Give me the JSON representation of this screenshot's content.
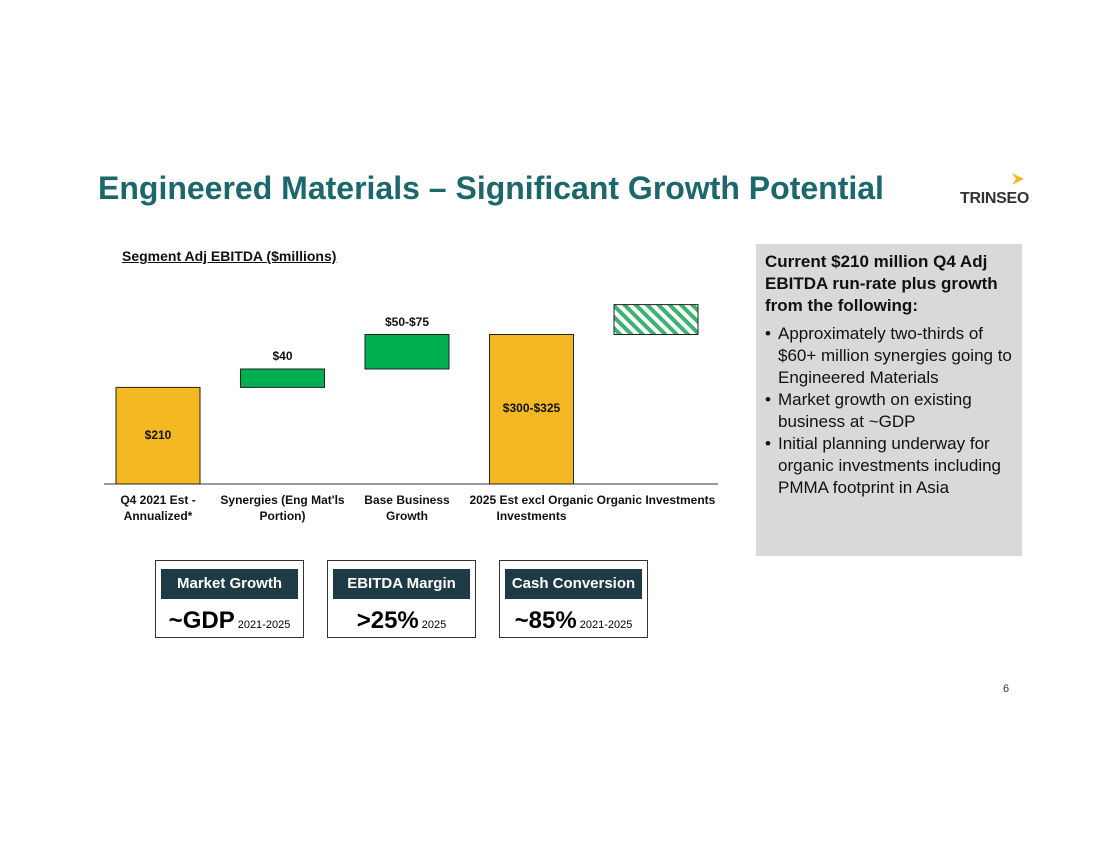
{
  "header": {
    "title": "Engineered Materials – Significant Growth Potential",
    "logo": "TRINSEO"
  },
  "chart_data": {
    "type": "waterfall",
    "title": "Segment Adj EBITDA ($millions)",
    "categories": [
      "Q4 2021 Est - Annualized*",
      "Synergies (Eng Mat'ls Portion)",
      "Base Business Growth",
      "2025 Est excl Organic Investments",
      "Organic Investments"
    ],
    "measure": [
      "absolute",
      "relative",
      "relative",
      "total",
      "relative"
    ],
    "values": [
      210,
      40,
      75,
      325,
      65
    ],
    "value_labels": [
      "$210",
      "$40",
      "$50-$75",
      "$300-$325",
      null
    ],
    "colors": [
      "#f4b823",
      "#00b050",
      "#00b050",
      "#f4b823",
      "#00b050"
    ],
    "hatched": [
      false,
      false,
      false,
      false,
      true
    ]
  },
  "panel": {
    "heading": "Current $210 million Q4 Adj EBITDA run-rate plus growth from the following:",
    "bullets": [
      "Approximately two-thirds of $60+ million synergies going to Engineered Materials",
      "Market growth on existing business at ~GDP",
      "Initial planning underway for organic investments including PMMA footprint in Asia"
    ]
  },
  "kpis": [
    {
      "label": "Market Growth",
      "value": "~GDP",
      "period": "2021-2025"
    },
    {
      "label": "EBITDA Margin",
      "value": ">25%",
      "period": "2025"
    },
    {
      "label": "Cash Conversion",
      "value": "~85%",
      "period": "2021-2025"
    }
  ],
  "footer": {
    "page": "6"
  }
}
